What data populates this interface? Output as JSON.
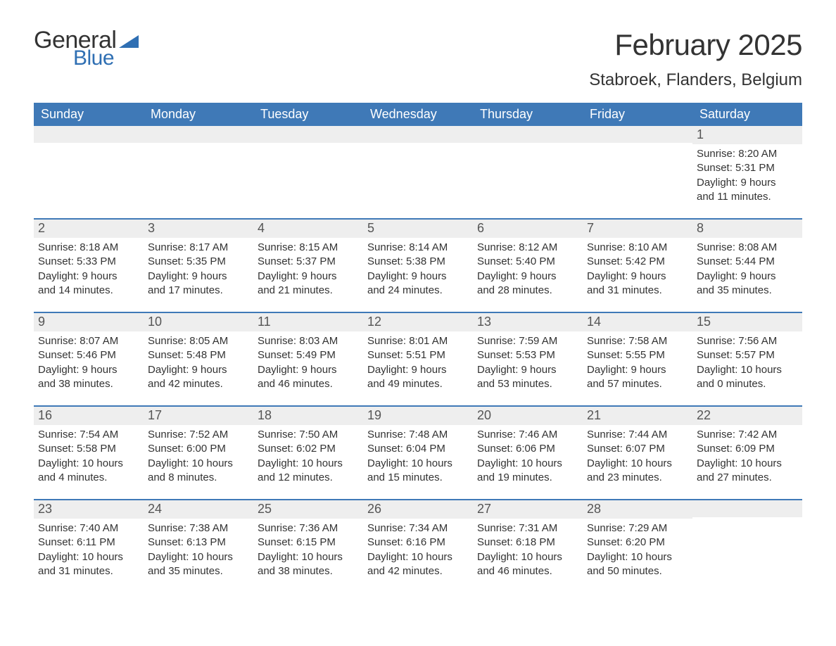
{
  "logo": {
    "text1": "General",
    "text2": "Blue"
  },
  "title": "February 2025",
  "location": "Stabroek, Flanders, Belgium",
  "colors": {
    "header_bg": "#3f79b7",
    "header_text": "#ffffff",
    "daynum_bg": "#eeeeee",
    "row_border": "#3f79b7",
    "page_bg": "#ffffff",
    "text": "#333333",
    "logo_blue": "#2f6fb3"
  },
  "day_names": [
    "Sunday",
    "Monday",
    "Tuesday",
    "Wednesday",
    "Thursday",
    "Friday",
    "Saturday"
  ],
  "weeks": [
    [
      {
        "blank": true
      },
      {
        "blank": true
      },
      {
        "blank": true
      },
      {
        "blank": true
      },
      {
        "blank": true
      },
      {
        "blank": true
      },
      {
        "n": "1",
        "sunrise": "Sunrise: 8:20 AM",
        "sunset": "Sunset: 5:31 PM",
        "day1": "Daylight: 9 hours",
        "day2": "and 11 minutes."
      }
    ],
    [
      {
        "n": "2",
        "sunrise": "Sunrise: 8:18 AM",
        "sunset": "Sunset: 5:33 PM",
        "day1": "Daylight: 9 hours",
        "day2": "and 14 minutes."
      },
      {
        "n": "3",
        "sunrise": "Sunrise: 8:17 AM",
        "sunset": "Sunset: 5:35 PM",
        "day1": "Daylight: 9 hours",
        "day2": "and 17 minutes."
      },
      {
        "n": "4",
        "sunrise": "Sunrise: 8:15 AM",
        "sunset": "Sunset: 5:37 PM",
        "day1": "Daylight: 9 hours",
        "day2": "and 21 minutes."
      },
      {
        "n": "5",
        "sunrise": "Sunrise: 8:14 AM",
        "sunset": "Sunset: 5:38 PM",
        "day1": "Daylight: 9 hours",
        "day2": "and 24 minutes."
      },
      {
        "n": "6",
        "sunrise": "Sunrise: 8:12 AM",
        "sunset": "Sunset: 5:40 PM",
        "day1": "Daylight: 9 hours",
        "day2": "and 28 minutes."
      },
      {
        "n": "7",
        "sunrise": "Sunrise: 8:10 AM",
        "sunset": "Sunset: 5:42 PM",
        "day1": "Daylight: 9 hours",
        "day2": "and 31 minutes."
      },
      {
        "n": "8",
        "sunrise": "Sunrise: 8:08 AM",
        "sunset": "Sunset: 5:44 PM",
        "day1": "Daylight: 9 hours",
        "day2": "and 35 minutes."
      }
    ],
    [
      {
        "n": "9",
        "sunrise": "Sunrise: 8:07 AM",
        "sunset": "Sunset: 5:46 PM",
        "day1": "Daylight: 9 hours",
        "day2": "and 38 minutes."
      },
      {
        "n": "10",
        "sunrise": "Sunrise: 8:05 AM",
        "sunset": "Sunset: 5:48 PM",
        "day1": "Daylight: 9 hours",
        "day2": "and 42 minutes."
      },
      {
        "n": "11",
        "sunrise": "Sunrise: 8:03 AM",
        "sunset": "Sunset: 5:49 PM",
        "day1": "Daylight: 9 hours",
        "day2": "and 46 minutes."
      },
      {
        "n": "12",
        "sunrise": "Sunrise: 8:01 AM",
        "sunset": "Sunset: 5:51 PM",
        "day1": "Daylight: 9 hours",
        "day2": "and 49 minutes."
      },
      {
        "n": "13",
        "sunrise": "Sunrise: 7:59 AM",
        "sunset": "Sunset: 5:53 PM",
        "day1": "Daylight: 9 hours",
        "day2": "and 53 minutes."
      },
      {
        "n": "14",
        "sunrise": "Sunrise: 7:58 AM",
        "sunset": "Sunset: 5:55 PM",
        "day1": "Daylight: 9 hours",
        "day2": "and 57 minutes."
      },
      {
        "n": "15",
        "sunrise": "Sunrise: 7:56 AM",
        "sunset": "Sunset: 5:57 PM",
        "day1": "Daylight: 10 hours",
        "day2": "and 0 minutes."
      }
    ],
    [
      {
        "n": "16",
        "sunrise": "Sunrise: 7:54 AM",
        "sunset": "Sunset: 5:58 PM",
        "day1": "Daylight: 10 hours",
        "day2": "and 4 minutes."
      },
      {
        "n": "17",
        "sunrise": "Sunrise: 7:52 AM",
        "sunset": "Sunset: 6:00 PM",
        "day1": "Daylight: 10 hours",
        "day2": "and 8 minutes."
      },
      {
        "n": "18",
        "sunrise": "Sunrise: 7:50 AM",
        "sunset": "Sunset: 6:02 PM",
        "day1": "Daylight: 10 hours",
        "day2": "and 12 minutes."
      },
      {
        "n": "19",
        "sunrise": "Sunrise: 7:48 AM",
        "sunset": "Sunset: 6:04 PM",
        "day1": "Daylight: 10 hours",
        "day2": "and 15 minutes."
      },
      {
        "n": "20",
        "sunrise": "Sunrise: 7:46 AM",
        "sunset": "Sunset: 6:06 PM",
        "day1": "Daylight: 10 hours",
        "day2": "and 19 minutes."
      },
      {
        "n": "21",
        "sunrise": "Sunrise: 7:44 AM",
        "sunset": "Sunset: 6:07 PM",
        "day1": "Daylight: 10 hours",
        "day2": "and 23 minutes."
      },
      {
        "n": "22",
        "sunrise": "Sunrise: 7:42 AM",
        "sunset": "Sunset: 6:09 PM",
        "day1": "Daylight: 10 hours",
        "day2": "and 27 minutes."
      }
    ],
    [
      {
        "n": "23",
        "sunrise": "Sunrise: 7:40 AM",
        "sunset": "Sunset: 6:11 PM",
        "day1": "Daylight: 10 hours",
        "day2": "and 31 minutes."
      },
      {
        "n": "24",
        "sunrise": "Sunrise: 7:38 AM",
        "sunset": "Sunset: 6:13 PM",
        "day1": "Daylight: 10 hours",
        "day2": "and 35 minutes."
      },
      {
        "n": "25",
        "sunrise": "Sunrise: 7:36 AM",
        "sunset": "Sunset: 6:15 PM",
        "day1": "Daylight: 10 hours",
        "day2": "and 38 minutes."
      },
      {
        "n": "26",
        "sunrise": "Sunrise: 7:34 AM",
        "sunset": "Sunset: 6:16 PM",
        "day1": "Daylight: 10 hours",
        "day2": "and 42 minutes."
      },
      {
        "n": "27",
        "sunrise": "Sunrise: 7:31 AM",
        "sunset": "Sunset: 6:18 PM",
        "day1": "Daylight: 10 hours",
        "day2": "and 46 minutes."
      },
      {
        "n": "28",
        "sunrise": "Sunrise: 7:29 AM",
        "sunset": "Sunset: 6:20 PM",
        "day1": "Daylight: 10 hours",
        "day2": "and 50 minutes."
      },
      {
        "blank": true
      }
    ]
  ]
}
